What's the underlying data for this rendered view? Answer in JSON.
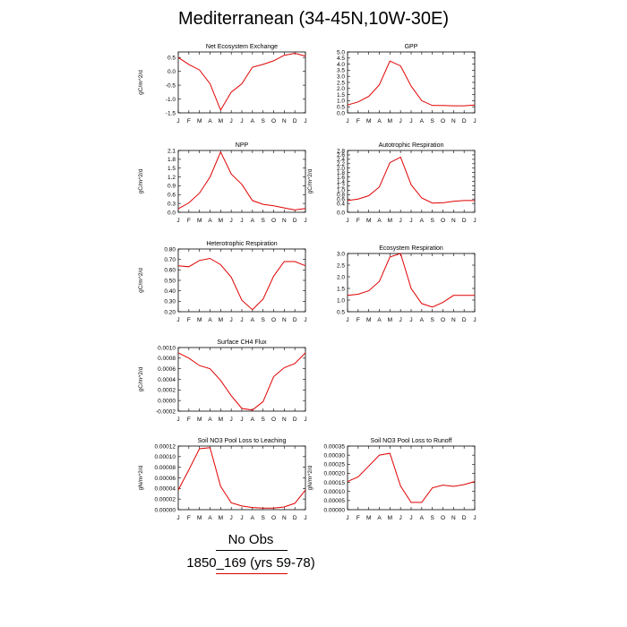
{
  "page_title": "Mediterranean (34-45N,10W-30E)",
  "legend": {
    "obs_label": "No Obs",
    "obs_color": "#000000",
    "run_label": "1850_169 (yrs 59-78)",
    "run_color": "#e00000"
  },
  "chart_data": [
    {
      "type": "line",
      "title": "Net Ecosystem Exchange",
      "ylabel": "gC/m^2/d",
      "x": [
        "J",
        "F",
        "M",
        "A",
        "M",
        "J",
        "J",
        "A",
        "S",
        "O",
        "N",
        "D",
        "J"
      ],
      "ylim": [
        -1.5,
        0.7
      ],
      "yticks": [
        -1.5,
        -1.0,
        -0.5,
        0.0,
        0.5
      ],
      "ytick_labels": [
        "-1.5",
        "-1.0",
        "-0.5",
        "0.0",
        "0.5"
      ],
      "series": [
        {
          "values": [
            0.5,
            0.25,
            0.05,
            -0.45,
            -1.4,
            -0.75,
            -0.45,
            0.15,
            0.25,
            0.38,
            0.58,
            0.65,
            0.55
          ]
        }
      ]
    },
    {
      "type": "line",
      "title": "GPP",
      "ylabel": "",
      "x": [
        "J",
        "F",
        "M",
        "A",
        "M",
        "J",
        "J",
        "A",
        "S",
        "O",
        "N",
        "D",
        "J"
      ],
      "ylim": [
        0.0,
        5.0
      ],
      "yticks": [
        0.0,
        0.5,
        1.0,
        1.5,
        2.0,
        2.5,
        3.0,
        3.5,
        4.0,
        4.5,
        5.0
      ],
      "ytick_labels": [
        "0.0",
        "0.5",
        "1.0",
        "1.5",
        "2.0",
        "2.5",
        "3.0",
        "3.5",
        "4.0",
        "4.5",
        "5.0"
      ],
      "series": [
        {
          "values": [
            0.65,
            0.9,
            1.35,
            2.3,
            4.25,
            3.85,
            2.2,
            1.0,
            0.6,
            0.6,
            0.58,
            0.58,
            0.65
          ]
        }
      ]
    },
    {
      "type": "line",
      "title": "NPP",
      "ylabel": "gC/m^2/d",
      "x": [
        "J",
        "F",
        "M",
        "A",
        "M",
        "J",
        "J",
        "A",
        "S",
        "O",
        "N",
        "D",
        "J"
      ],
      "ylim": [
        0.0,
        2.1
      ],
      "yticks": [
        0.0,
        0.3,
        0.6,
        0.9,
        1.2,
        1.5,
        1.8,
        2.1
      ],
      "ytick_labels": [
        "0.0",
        "0.3",
        "0.6",
        "0.9",
        "1.2",
        "1.5",
        "1.8",
        "2.1"
      ],
      "series": [
        {
          "values": [
            0.12,
            0.32,
            0.65,
            1.2,
            2.05,
            1.3,
            0.95,
            0.4,
            0.27,
            0.22,
            0.15,
            0.08,
            0.13
          ]
        }
      ]
    },
    {
      "type": "line",
      "title": "Autotrophic Respiration",
      "ylabel": "gC/m^2/d",
      "x": [
        "J",
        "F",
        "M",
        "A",
        "M",
        "J",
        "J",
        "A",
        "S",
        "O",
        "N",
        "D",
        "J"
      ],
      "ylim": [
        0.0,
        2.8
      ],
      "yticks": [
        0.0,
        0.4,
        0.6,
        0.8,
        1.0,
        1.2,
        1.4,
        1.6,
        1.8,
        2.0,
        2.2,
        2.4,
        2.6,
        2.8
      ],
      "ytick_labels": [
        "0.0",
        "0.4",
        "0.6",
        "0.8",
        "1.0",
        "1.2",
        "1.4",
        "1.6",
        "1.8",
        "2.0",
        "2.2",
        "2.4",
        "2.6",
        "2.8"
      ],
      "series": [
        {
          "values": [
            0.53,
            0.6,
            0.75,
            1.15,
            2.25,
            2.5,
            1.25,
            0.65,
            0.42,
            0.43,
            0.5,
            0.53,
            0.53
          ]
        }
      ]
    },
    {
      "type": "line",
      "title": "Heterotrophic Respiration",
      "ylabel": "gC/m^2/d",
      "x": [
        "J",
        "F",
        "M",
        "A",
        "M",
        "J",
        "J",
        "A",
        "S",
        "O",
        "N",
        "D",
        "J"
      ],
      "ylim": [
        0.2,
        0.8
      ],
      "yticks": [
        0.2,
        0.3,
        0.4,
        0.5,
        0.6,
        0.7,
        0.8
      ],
      "ytick_labels": [
        "0.20",
        "0.30",
        "0.40",
        "0.50",
        "0.60",
        "0.70",
        "0.80"
      ],
      "series": [
        {
          "values": [
            0.64,
            0.63,
            0.69,
            0.71,
            0.65,
            0.53,
            0.31,
            0.22,
            0.32,
            0.54,
            0.68,
            0.68,
            0.64
          ]
        }
      ]
    },
    {
      "type": "line",
      "title": "Ecosystem Respiration",
      "ylabel": "",
      "x": [
        "J",
        "F",
        "M",
        "A",
        "M",
        "J",
        "J",
        "A",
        "S",
        "O",
        "N",
        "D",
        "J"
      ],
      "ylim": [
        0.5,
        3.0
      ],
      "yticks": [
        0.5,
        1.0,
        1.5,
        2.0,
        2.5,
        3.0
      ],
      "ytick_labels": [
        "0.5",
        "1.0",
        "1.5",
        "2.0",
        "2.5",
        "3.0"
      ],
      "series": [
        {
          "values": [
            1.2,
            1.25,
            1.4,
            1.8,
            2.85,
            3.0,
            1.5,
            0.85,
            0.7,
            0.9,
            1.2,
            1.2,
            1.2
          ]
        }
      ]
    },
    {
      "type": "line",
      "title": "Surface CH4 Flux",
      "ylabel": "gC/m^2/d",
      "x": [
        "J",
        "F",
        "M",
        "A",
        "M",
        "J",
        "J",
        "A",
        "S",
        "O",
        "N",
        "D",
        "J"
      ],
      "ylim": [
        -0.0002,
        0.001
      ],
      "yticks": [
        -0.0002,
        0.0,
        0.0002,
        0.0004,
        0.0006,
        0.0008,
        0.001
      ],
      "ytick_labels": [
        "-0.0002",
        "0.0000",
        "0.0002",
        "0.0004",
        "0.0006",
        "0.0008",
        "0.0010"
      ],
      "series": [
        {
          "values": [
            0.0009,
            0.0008,
            0.00066,
            0.0006,
            0.00038,
            9e-05,
            -0.00015,
            -0.00018,
            -2e-05,
            0.00045,
            0.00062,
            0.0007,
            0.0009
          ]
        }
      ]
    },
    {
      "type": "line",
      "title": "Soil NO3 Pool Loss to Leaching",
      "ylabel": "gN/m^2/d",
      "x": [
        "J",
        "F",
        "M",
        "A",
        "M",
        "J",
        "J",
        "A",
        "S",
        "O",
        "N",
        "D",
        "J"
      ],
      "ylim": [
        0.0,
        0.00012
      ],
      "yticks": [
        0.0,
        2e-05,
        4e-05,
        6e-05,
        8e-05,
        0.0001,
        0.00012
      ],
      "ytick_labels": [
        "0.00000",
        "0.00002",
        "0.00004",
        "0.00006",
        "0.00008",
        "0.00010",
        "0.00012"
      ],
      "series": [
        {
          "values": [
            3.7e-05,
            7.5e-05,
            0.000115,
            0.000117,
            4.4e-05,
            1.3e-05,
            7e-06,
            4e-06,
            3e-06,
            3e-06,
            5e-06,
            1.2e-05,
            3.7e-05
          ]
        }
      ]
    },
    {
      "type": "line",
      "title": "Soil NO3 Pool Loss to Runoff",
      "ylabel": "gN/m^2/d",
      "x": [
        "J",
        "F",
        "M",
        "A",
        "M",
        "J",
        "J",
        "A",
        "S",
        "O",
        "N",
        "D",
        "J"
      ],
      "ylim": [
        0.0,
        0.00035
      ],
      "yticks": [
        0.0,
        5e-05,
        0.0001,
        0.00015,
        0.0002,
        0.00025,
        0.0003,
        0.00035
      ],
      "ytick_labels": [
        "0.00000",
        "0.00005",
        "0.00010",
        "0.00015",
        "0.00020",
        "0.00025",
        "0.00030",
        "0.00035"
      ],
      "series": [
        {
          "values": [
            0.000155,
            0.00018,
            0.00024,
            0.0003,
            0.00031,
            0.00013,
            4e-05,
            4e-05,
            0.00012,
            0.000135,
            0.000128,
            0.000138,
            0.000155
          ]
        }
      ]
    }
  ]
}
